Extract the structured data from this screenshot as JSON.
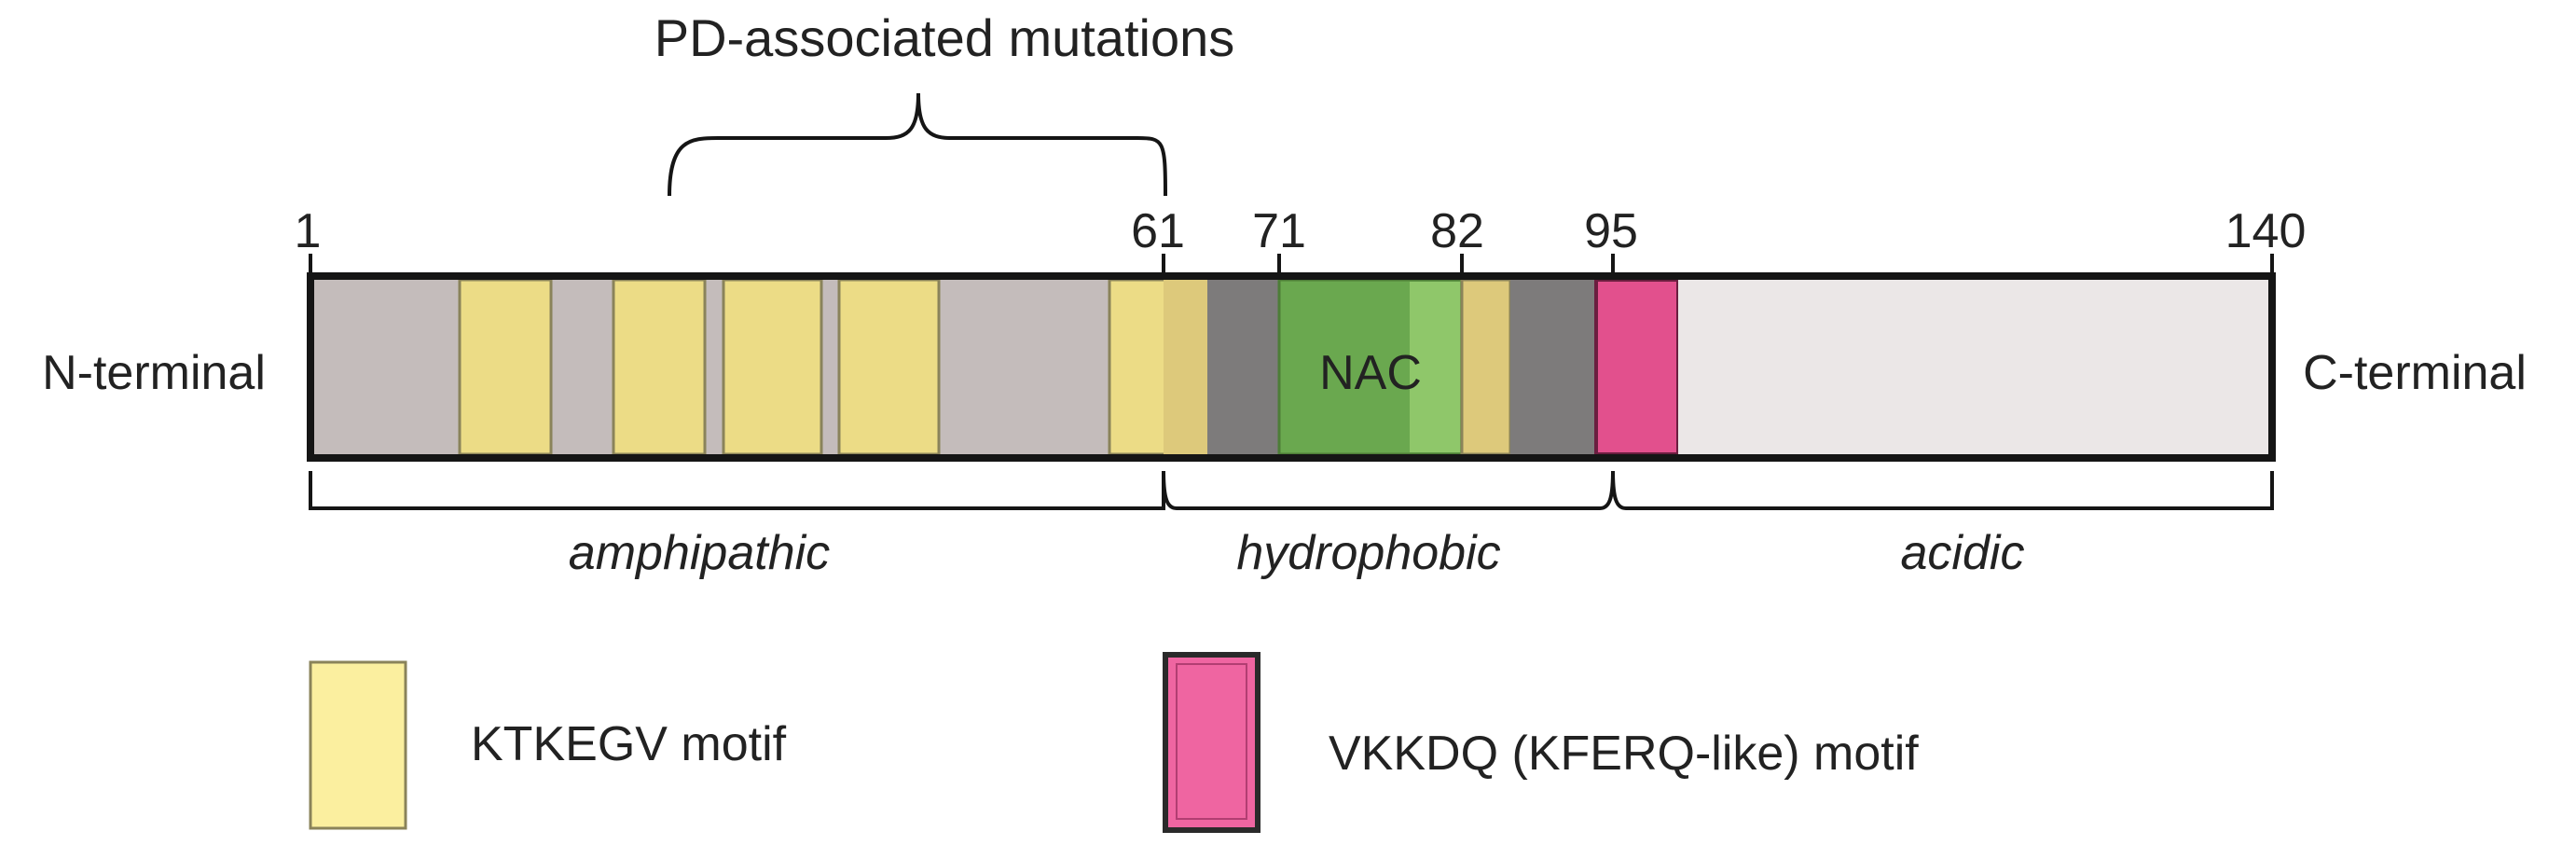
{
  "title": "PD-associated mutations",
  "protein": {
    "length": 140,
    "n_terminal_label": "N-terminal",
    "c_terminal_label": "C-terminal",
    "position_ticks": [
      "1",
      "61",
      "71",
      "82",
      "95",
      "140"
    ],
    "nac_label": "NAC"
  },
  "domains": [
    {
      "label": "amphipathic",
      "start": 1,
      "end": 61
    },
    {
      "label": "hydrophobic",
      "start": 61,
      "end": 95
    },
    {
      "label": "acidic",
      "start": 95,
      "end": 140
    }
  ],
  "legend": {
    "ktkegv_label": "KTKEGV motif",
    "vkkdq_label": "VKKDQ (KFERQ-like) motif"
  },
  "colors": {
    "background": "#ffffff",
    "outline": "#151515",
    "amphipathic_fill": "#c4bcbb",
    "ktkegv_fill": "#ecdc86",
    "ktkegv_legend": "#fbef9f",
    "hydrophobic_fill": "#7d7b7b",
    "nac_fill": "#6aa84f",
    "nac_highlight": "#8fc76a",
    "vkkdq_fill": "#e2508d",
    "vkkdq_legend": "#ef65a1",
    "acidic_fill": "#ebe7e7",
    "text": "#222222"
  }
}
